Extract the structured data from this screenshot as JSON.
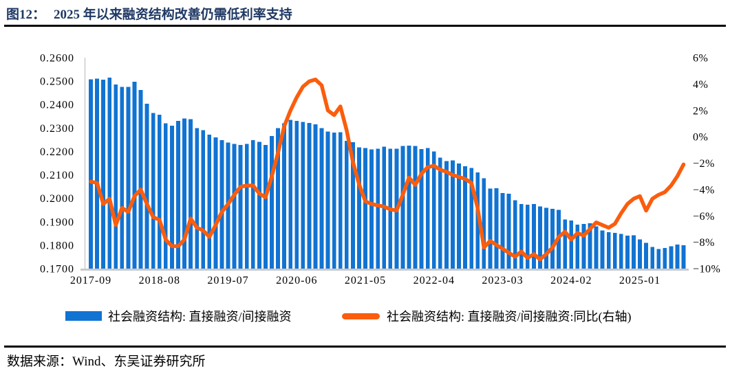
{
  "header": {
    "title_prefix": "图12：",
    "title": "2025 年以来融资结构改善仍需低利率支持"
  },
  "footer": {
    "source_label": "数据来源：",
    "source_text": "Wind、东吴证券研究所"
  },
  "colors": {
    "bar_blue": "#1173D2",
    "line_orange": "#FA5D0E",
    "title_navy": "#1F3864",
    "axis_line_gray": "#C9C9C9"
  },
  "legend": [
    {
      "label": "社会融资结构: 直接融资/间接融资",
      "marker": "bar-swatch",
      "color": "#1173D2"
    },
    {
      "label": "社会融资结构: 直接融资/间接融资:同比(右轴)",
      "marker": "line-swatch",
      "color": "#FA5D0E"
    }
  ],
  "chart_data": {
    "type": "bar",
    "note": "monthly bar series on left axis plus yoy line series on right axis",
    "grid": false,
    "legend_position": "bottom",
    "left_axis": {
      "min": 0.17,
      "max": 0.26,
      "ticks": [
        "0.2600",
        "0.2500",
        "0.2400",
        "0.2300",
        "0.2200",
        "0.2100",
        "0.2000",
        "0.1900",
        "0.1800",
        "0.1700"
      ]
    },
    "right_axis": {
      "min": -10,
      "max": 6,
      "ticks": [
        "6%",
        "4%",
        "2%",
        "0%",
        "−2%",
        "−4%",
        "−6%",
        "−8%",
        "−10%"
      ]
    },
    "x_tick_labels": [
      "2017-09",
      "2018-08",
      "2019-07",
      "2020-06",
      "2021-05",
      "2022-04",
      "2023-03",
      "2024-02",
      "2025-01"
    ],
    "x_tick_indices": [
      0,
      11,
      22,
      33,
      44,
      55,
      66,
      77,
      88
    ],
    "x": [
      "2017-09",
      "2017-10",
      "2017-11",
      "2017-12",
      "2018-01",
      "2018-02",
      "2018-03",
      "2018-04",
      "2018-05",
      "2018-06",
      "2018-07",
      "2018-08",
      "2018-09",
      "2018-10",
      "2018-11",
      "2018-12",
      "2019-01",
      "2019-02",
      "2019-03",
      "2019-04",
      "2019-05",
      "2019-06",
      "2019-07",
      "2019-08",
      "2019-09",
      "2019-10",
      "2019-11",
      "2019-12",
      "2020-01",
      "2020-02",
      "2020-03",
      "2020-04",
      "2020-05",
      "2020-06",
      "2020-07",
      "2020-08",
      "2020-09",
      "2020-10",
      "2020-11",
      "2020-12",
      "2021-01",
      "2021-02",
      "2021-03",
      "2021-04",
      "2021-05",
      "2021-06",
      "2021-07",
      "2021-08",
      "2021-09",
      "2021-10",
      "2021-11",
      "2021-12",
      "2022-01",
      "2022-02",
      "2022-03",
      "2022-04",
      "2022-05",
      "2022-06",
      "2022-07",
      "2022-08",
      "2022-09",
      "2022-10",
      "2022-11",
      "2022-12",
      "2023-01",
      "2023-02",
      "2023-03",
      "2023-04",
      "2023-05",
      "2023-06",
      "2023-07",
      "2023-08",
      "2023-09",
      "2023-10",
      "2023-11",
      "2023-12",
      "2024-01",
      "2024-02",
      "2024-03",
      "2024-04",
      "2024-05",
      "2024-06",
      "2024-07",
      "2024-08",
      "2024-09",
      "2024-10",
      "2024-11",
      "2024-12",
      "2025-01",
      "2025-02",
      "2025-03",
      "2025-04",
      "2025-05",
      "2025-06",
      "2025-07",
      "2025-08"
    ],
    "series": [
      {
        "name": "社会融资结构: 直接融资/间接融资",
        "type": "bar",
        "axis": "left",
        "color": "#1173D2",
        "values": [
          0.2508,
          0.2511,
          0.2506,
          0.2515,
          0.2486,
          0.2476,
          0.2476,
          0.2498,
          0.2462,
          0.2403,
          0.2364,
          0.2357,
          0.232,
          0.231,
          0.233,
          0.234,
          0.2338,
          0.23,
          0.229,
          0.2272,
          0.226,
          0.2248,
          0.2238,
          0.2232,
          0.2227,
          0.2232,
          0.2248,
          0.2241,
          0.2227,
          0.2266,
          0.23,
          0.232,
          0.2334,
          0.2331,
          0.2326,
          0.2322,
          0.2315,
          0.23,
          0.2285,
          0.228,
          0.2282,
          0.2246,
          0.224,
          0.2218,
          0.2215,
          0.2208,
          0.2211,
          0.222,
          0.2212,
          0.2211,
          0.2223,
          0.2225,
          0.2224,
          0.221,
          0.2215,
          0.22,
          0.2174,
          0.2159,
          0.2162,
          0.2149,
          0.2137,
          0.2129,
          0.211,
          0.2085,
          0.2041,
          0.2043,
          0.2022,
          0.202,
          0.1992,
          0.1975,
          0.1972,
          0.1975,
          0.1965,
          0.196,
          0.1955,
          0.195,
          0.191,
          0.1905,
          0.1888,
          0.189,
          0.1893,
          0.188,
          0.1862,
          0.1856,
          0.1853,
          0.1848,
          0.184,
          0.1842,
          0.1825,
          0.181,
          0.1793,
          0.1783,
          0.1788,
          0.1795,
          0.1803,
          0.18
        ]
      },
      {
        "name": "社会融资结构: 直接融资/间接融资:同比(右轴)",
        "type": "line",
        "axis": "right",
        "color": "#FA5D0E",
        "values": [
          -3.4,
          -3.5,
          -5.1,
          -4.7,
          -6.7,
          -5.4,
          -5.7,
          -4.5,
          -4.0,
          -5.1,
          -6.1,
          -6.3,
          -7.8,
          -8.3,
          -8.3,
          -7.8,
          -6.2,
          -6.9,
          -7.1,
          -7.6,
          -6.7,
          -5.7,
          -5.1,
          -4.4,
          -3.8,
          -3.7,
          -3.7,
          -4.3,
          -4.6,
          -3.0,
          -1.2,
          0.8,
          2.0,
          3.0,
          3.8,
          4.2,
          4.35,
          3.9,
          2.0,
          1.65,
          2.3,
          0.5,
          -1.9,
          -3.6,
          -4.9,
          -5.1,
          -5.2,
          -5.3,
          -5.5,
          -5.6,
          -4.4,
          -3.1,
          -3.65,
          -2.8,
          -2.3,
          -2.2,
          -2.5,
          -2.65,
          -2.9,
          -3.05,
          -3.2,
          -3.5,
          -5.4,
          -8.4,
          -7.9,
          -8.2,
          -8.5,
          -8.8,
          -9.1,
          -8.7,
          -9.2,
          -8.9,
          -9.3,
          -8.9,
          -8.4,
          -7.6,
          -7.2,
          -7.8,
          -7.3,
          -7.5,
          -7.0,
          -6.5,
          -6.7,
          -6.9,
          -6.6,
          -5.8,
          -5.1,
          -4.7,
          -4.5,
          -5.6,
          -4.7,
          -4.4,
          -4.2,
          -3.7,
          -3.0,
          -2.1
        ]
      }
    ]
  }
}
